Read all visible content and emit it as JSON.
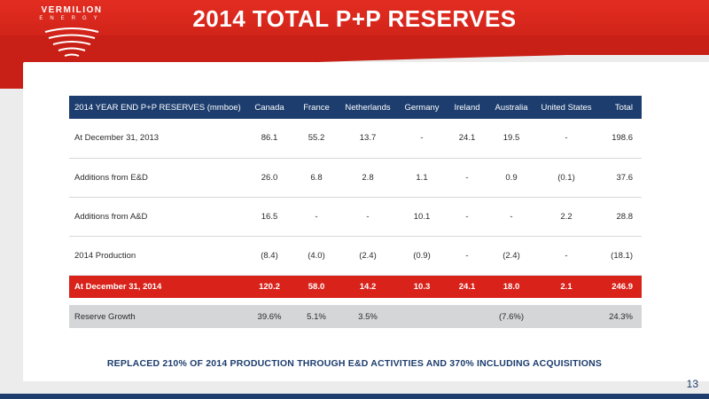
{
  "brand": {
    "name": "VERMILION",
    "subname": "ENERGY",
    "accent_red": "#d8221a",
    "accent_navy": "#1c3d6e"
  },
  "slide": {
    "title": "2014 TOTAL P+P RESERVES",
    "footnote": "REPLACED 210% OF 2014 PRODUCTION THROUGH E&D ACTIVITIES AND 370% INCLUDING ACQUISITIONS",
    "page_number": "13"
  },
  "table": {
    "header": [
      "2014 YEAR END P+P RESERVES (mmboe)",
      "Canada",
      "France",
      "Netherlands",
      "Germany",
      "Ireland",
      "Australia",
      "United States",
      "Total"
    ],
    "rows": [
      [
        "At December 31, 2013",
        "86.1",
        "55.2",
        "13.7",
        "-",
        "24.1",
        "19.5",
        "-",
        "198.6"
      ],
      [
        "Additions from E&D",
        "26.0",
        "6.8",
        "2.8",
        "1.1",
        "-",
        "0.9",
        "(0.1)",
        "37.6"
      ],
      [
        "Additions from A&D",
        "16.5",
        "-",
        "-",
        "10.1",
        "-",
        "-",
        "2.2",
        "28.8"
      ],
      [
        "2014 Production",
        "(8.4)",
        "(4.0)",
        "(2.4)",
        "(0.9)",
        "-",
        "(2.4)",
        "-",
        "(18.1)"
      ]
    ],
    "highlight_row": [
      "At December 31, 2014",
      "120.2",
      "58.0",
      "14.2",
      "10.3",
      "24.1",
      "18.0",
      "2.1",
      "246.9"
    ],
    "growth_row": [
      "Reserve Growth",
      "39.6%",
      "5.1%",
      "3.5%",
      "",
      "",
      "(7.6%)",
      "",
      "24.3%"
    ]
  }
}
